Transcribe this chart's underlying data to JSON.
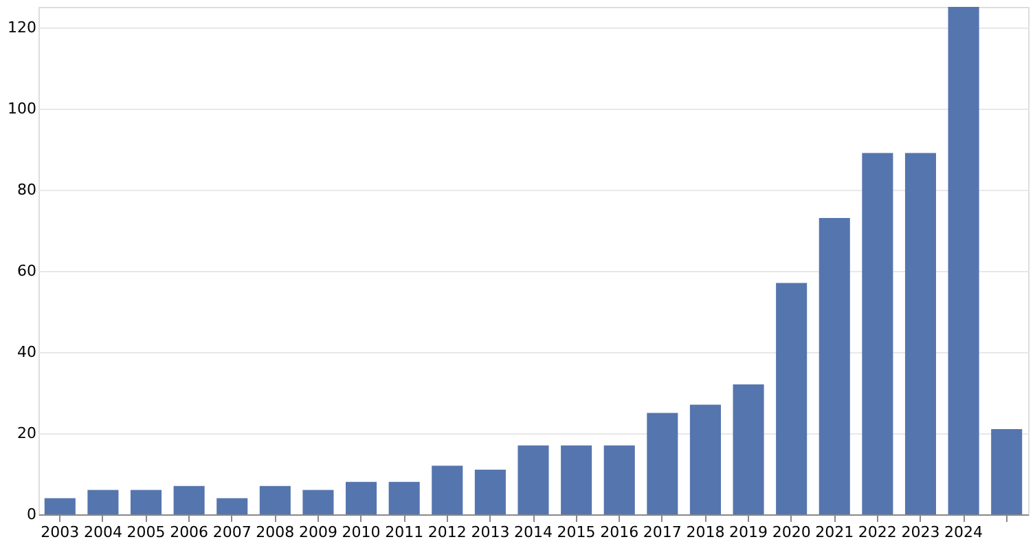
{
  "chart_data": {
    "type": "bar",
    "categories": [
      "2003",
      "2004",
      "2005",
      "2006",
      "2007",
      "2008",
      "2009",
      "2010",
      "2011",
      "2012",
      "2013",
      "2014",
      "2015",
      "2016",
      "2017",
      "2018",
      "2019",
      "2020",
      "2021",
      "2022",
      "2023",
      "2024",
      null
    ],
    "values": [
      4,
      6,
      6,
      7,
      4,
      7,
      6,
      8,
      8,
      12,
      11,
      17,
      17,
      17,
      25,
      27,
      32,
      57,
      73,
      89,
      89,
      125,
      21
    ],
    "color": "#5575ae",
    "ylim": [
      0,
      125
    ],
    "yticks": [
      0,
      20,
      40,
      60,
      80,
      100,
      120
    ],
    "grid": "y"
  }
}
